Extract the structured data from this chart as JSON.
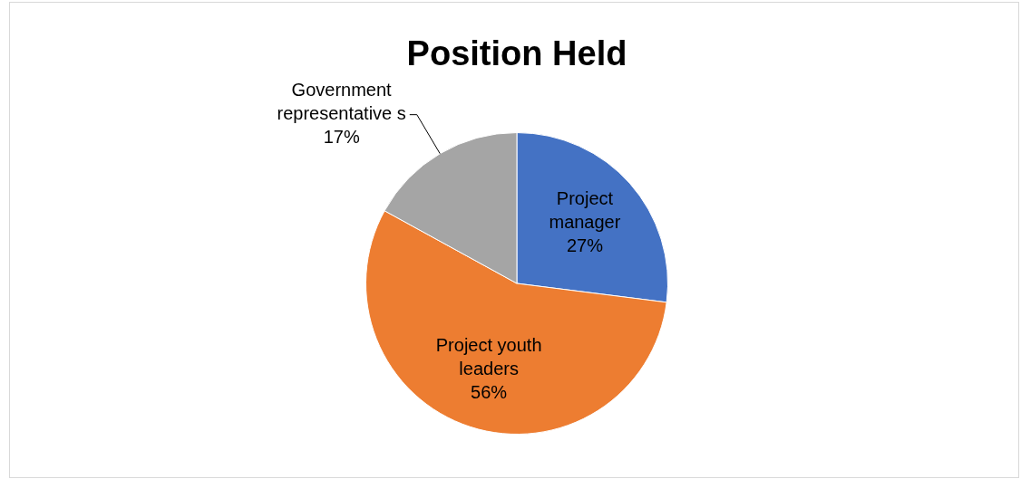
{
  "chart_data": {
    "type": "pie",
    "title": "Position Held",
    "categories": [
      "Project manager",
      "Project youth leaders",
      "Government representative s"
    ],
    "values": [
      27,
      56,
      17
    ],
    "colors": [
      "#4472c4",
      "#ed7d31",
      "#a5a5a5"
    ],
    "value_labels": [
      "27%",
      "56%",
      "17%"
    ],
    "legend": false
  }
}
